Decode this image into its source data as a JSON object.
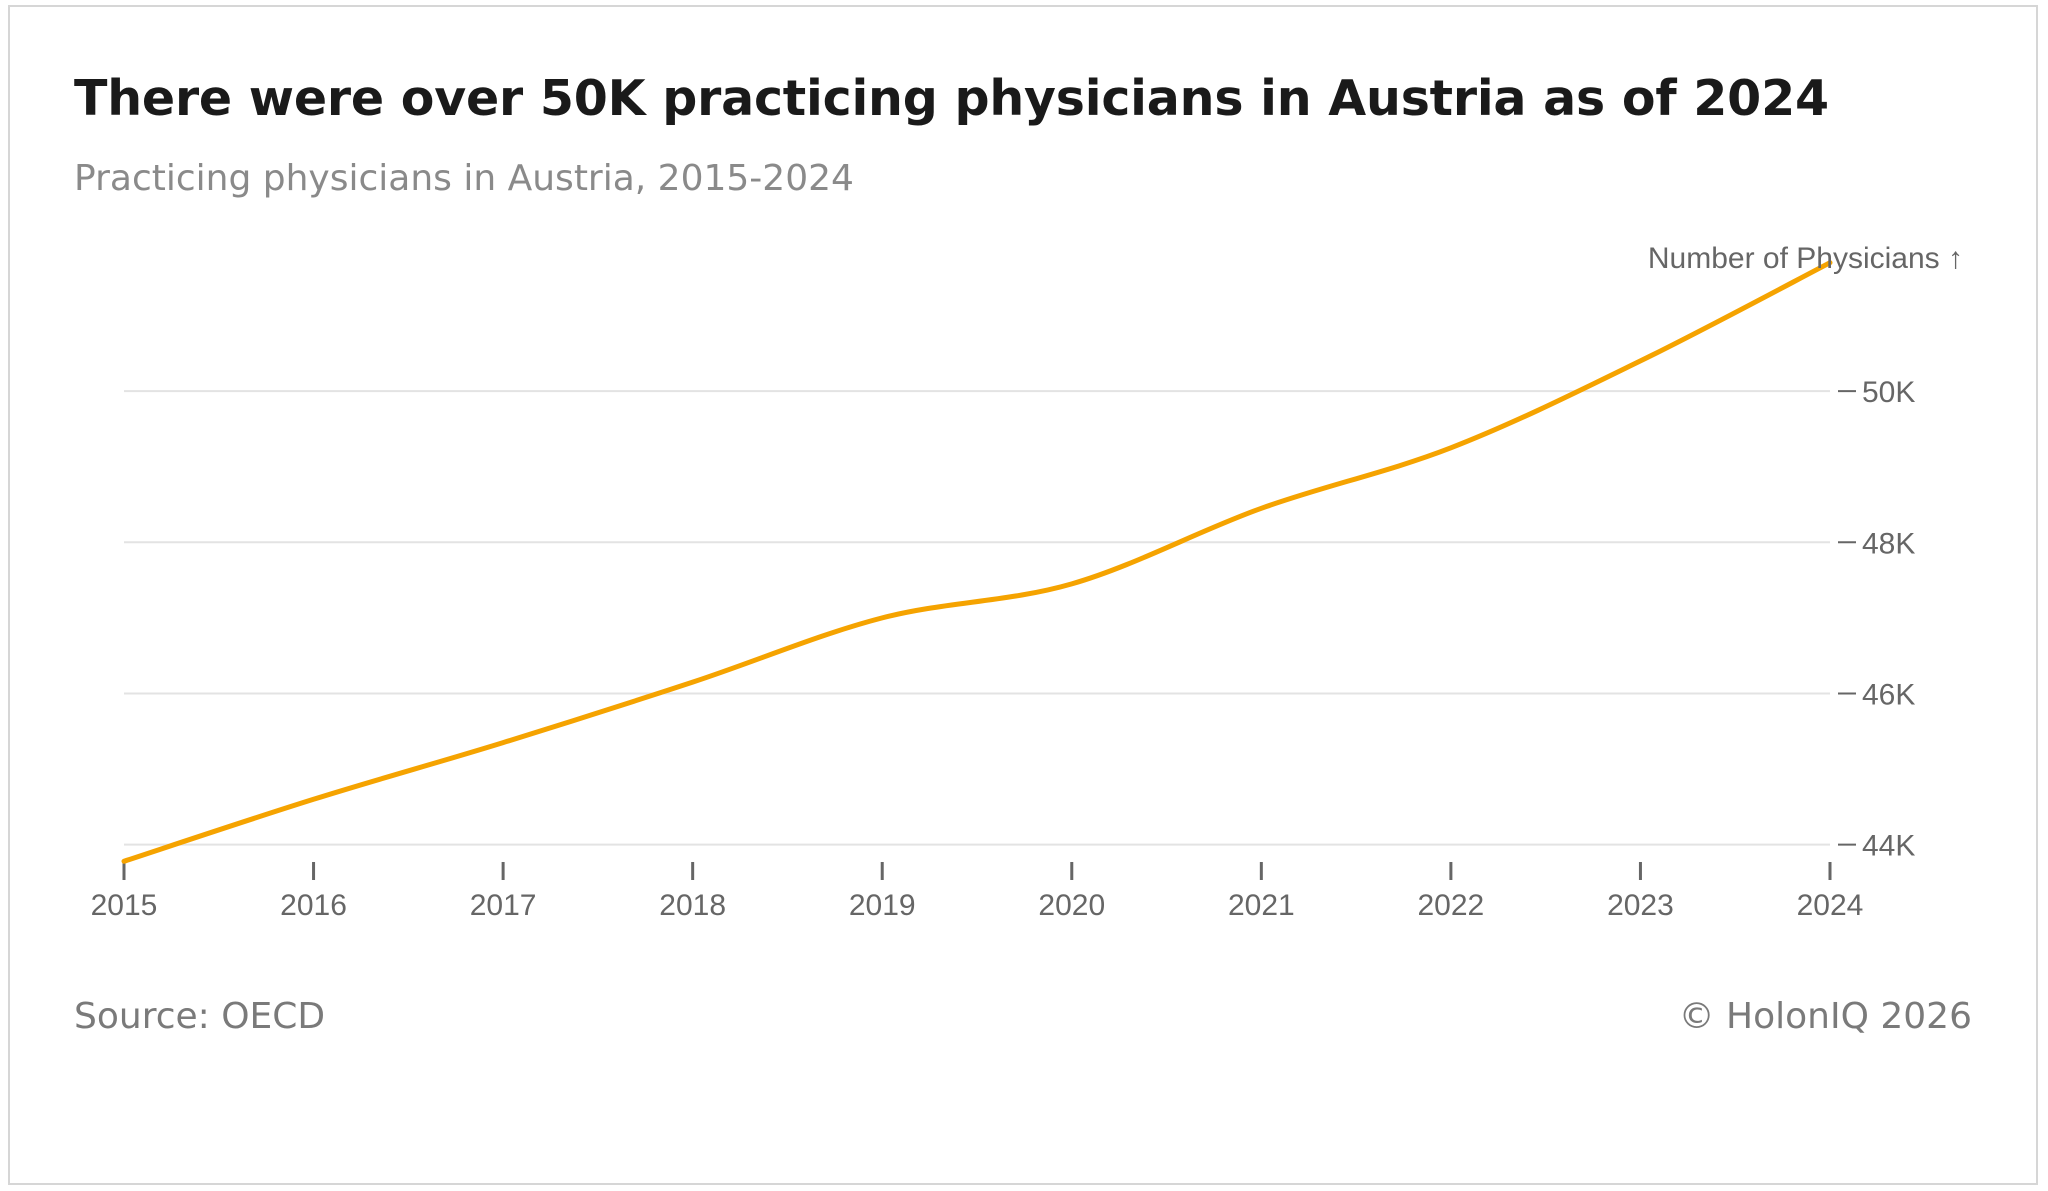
{
  "header": {
    "title": "There were over 50K practicing physicians in Austria as of 2024",
    "subtitle": "Practicing physicians in Austria, 2015-2024"
  },
  "footer": {
    "source": "Source: OECD",
    "copyright": "© HolonIQ 2026"
  },
  "colors": {
    "line": "#F5A300",
    "grid": "#e3e3e3",
    "axis": "#666666"
  },
  "chart_data": {
    "type": "line",
    "title": "There were over 50K practicing physicians in Austria as of 2024",
    "subtitle": "Practicing physicians in Austria, 2015-2024",
    "ylabel": "Number of Physicians ↑",
    "xlabel": "",
    "x": [
      2015,
      2016,
      2017,
      2018,
      2019,
      2020,
      2021,
      2022,
      2023,
      2024
    ],
    "x_tick_labels": [
      "2015",
      "2016",
      "2017",
      "2018",
      "2019",
      "2020",
      "2021",
      "2022",
      "2023",
      "2024"
    ],
    "y_ticks": [
      44000,
      46000,
      48000,
      50000
    ],
    "y_tick_labels": [
      "44K",
      "46K",
      "48K",
      "50K"
    ],
    "ylim": [
      43770,
      52000
    ],
    "grid": true,
    "series": [
      {
        "name": "Practicing physicians",
        "values": [
          43780,
          44600,
          45350,
          46150,
          47000,
          47450,
          48450,
          49250,
          50400,
          51700
        ]
      }
    ]
  }
}
